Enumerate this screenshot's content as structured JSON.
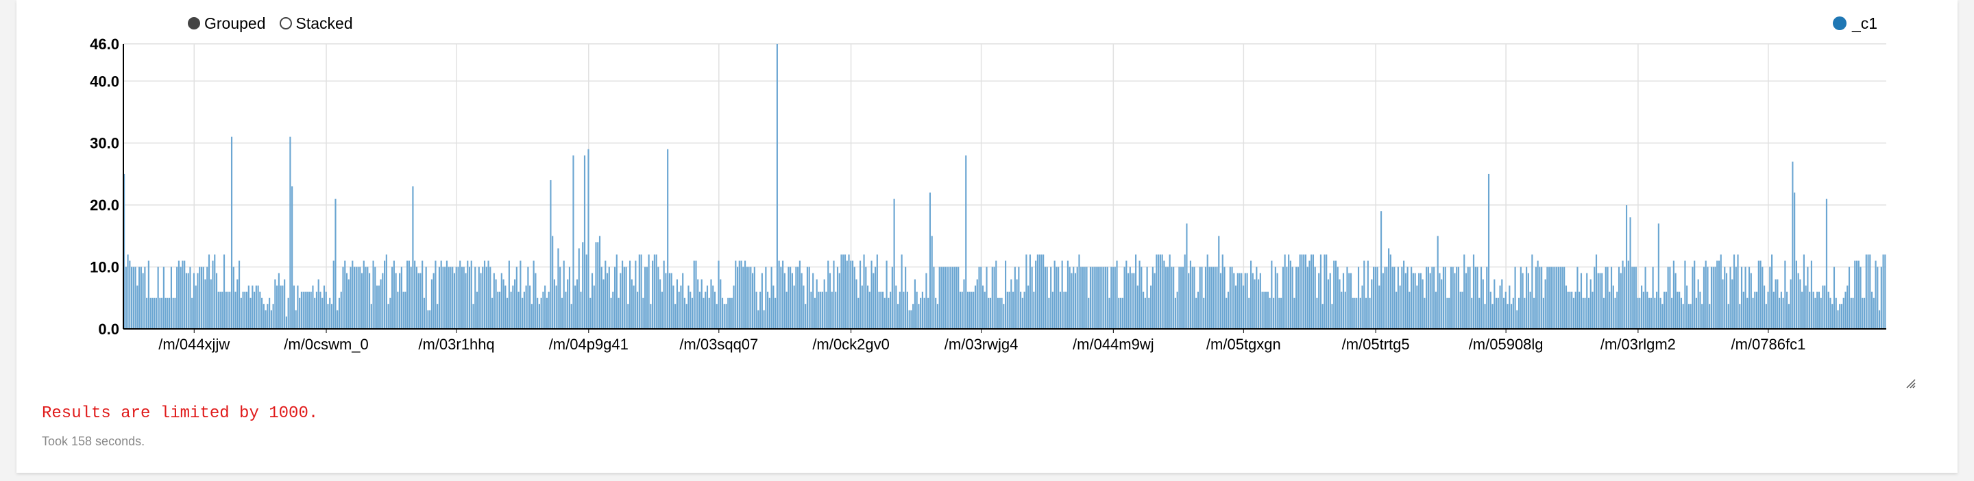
{
  "controls": {
    "grouped": "Grouped",
    "stacked": "Stacked"
  },
  "legend": {
    "label": "_c1",
    "color": "#1f77b4"
  },
  "results_message": "Results are limited by 1000.",
  "took_message": "Took 158 seconds.",
  "chart_data": {
    "type": "bar",
    "title": "",
    "xlabel": "",
    "ylabel": "",
    "ylim": [
      0,
      46
    ],
    "y_ticks": [
      "0.0",
      "10.0",
      "20.0",
      "30.0",
      "40.0",
      "46.0"
    ],
    "grid": true,
    "legend_position": "top-right",
    "bar_color": "#6ba6d2",
    "series": [
      {
        "name": "_c1",
        "color": "#1f77b4"
      }
    ],
    "x_tick_labels": [
      "/m/044xjjw",
      "/m/0cswm_0",
      "/m/03r1hhq",
      "/m/04p9g41",
      "/m/03sqq07",
      "/m/0ck2gv0",
      "/m/03rwjg4",
      "/m/044m9wj",
      "/m/05tgxgn",
      "/m/05trtg5",
      "/m/05908lg",
      "/m/03rlgm2",
      "/m/0786fc1"
    ],
    "values": [
      25,
      10,
      12,
      11,
      10,
      10,
      10,
      7,
      10,
      10,
      9,
      10,
      5,
      11,
      5,
      5,
      5,
      5,
      10,
      5,
      5,
      10,
      5,
      5,
      5,
      10,
      5,
      5,
      10,
      11,
      10,
      11,
      11,
      9,
      9,
      10,
      5,
      9,
      7,
      9,
      10,
      10,
      10,
      8,
      10,
      12,
      8,
      11,
      12,
      9,
      6,
      6,
      6,
      12,
      6,
      6,
      6,
      31,
      10,
      6,
      8,
      11,
      5,
      6,
      6,
      6,
      7,
      5,
      7,
      6,
      7,
      7,
      6,
      5,
      4,
      3,
      4,
      5,
      3,
      4,
      8,
      7,
      9,
      7,
      7,
      8,
      2,
      5,
      31,
      23,
      7,
      3,
      7,
      5,
      6,
      6,
      6,
      6,
      6,
      6,
      7,
      5,
      6,
      8,
      6,
      5,
      7,
      6,
      4,
      5,
      4,
      11,
      21,
      3,
      5,
      6,
      10,
      11,
      9,
      8,
      10,
      11,
      10,
      10,
      10,
      10,
      9,
      11,
      10,
      10,
      9,
      4,
      11,
      10,
      7,
      7,
      8,
      9,
      11,
      12,
      4,
      5,
      10,
      11,
      9,
      6,
      9,
      10,
      6,
      6,
      11,
      11,
      10,
      23,
      11,
      10,
      9,
      9,
      11,
      5,
      10,
      3,
      3,
      8,
      9,
      11,
      4,
      10,
      11,
      10,
      10,
      11,
      10,
      10,
      10,
      9,
      10,
      10,
      11,
      10,
      10,
      9,
      11,
      10,
      11,
      4,
      10,
      6,
      10,
      9,
      10,
      11,
      10,
      11,
      10,
      5,
      9,
      8,
      6,
      6,
      9,
      8,
      7,
      5,
      11,
      6,
      7,
      8,
      10,
      6,
      11,
      5,
      6,
      7,
      10,
      7,
      4,
      11,
      9,
      5,
      4,
      5,
      6,
      7,
      5,
      6,
      24,
      15,
      8,
      7,
      13,
      10,
      5,
      11,
      6,
      8,
      10,
      4,
      28,
      7,
      8,
      13,
      6,
      14,
      28,
      12,
      29,
      5,
      9,
      7,
      14,
      14,
      15,
      10,
      8,
      11,
      9,
      10,
      5,
      6,
      10,
      12,
      5,
      9,
      11,
      10,
      10,
      4,
      11,
      8,
      7,
      11,
      6,
      12,
      12,
      5,
      10,
      10,
      12,
      4,
      11,
      12,
      12,
      10,
      8,
      6,
      11,
      9,
      29,
      9,
      9,
      7,
      4,
      8,
      6,
      7,
      9,
      5,
      4,
      7,
      6,
      5,
      11,
      11,
      8,
      6,
      8,
      5,
      6,
      7,
      5,
      8,
      7,
      6,
      4,
      11,
      8,
      5,
      4,
      4,
      5,
      5,
      5,
      7,
      11,
      10,
      11,
      11,
      10,
      11,
      10,
      10,
      10,
      9,
      10,
      6,
      3,
      6,
      9,
      3,
      10,
      6,
      5,
      10,
      7,
      5,
      46,
      11,
      10,
      11,
      9,
      6,
      10,
      10,
      9,
      7,
      10,
      10,
      11,
      9,
      7,
      4,
      10,
      10,
      6,
      9,
      5,
      8,
      6,
      6,
      6,
      8,
      6,
      11,
      9,
      6,
      11,
      6,
      10,
      9,
      12,
      12,
      12,
      11,
      12,
      11,
      11,
      10,
      8,
      5,
      11,
      7,
      12,
      10,
      7,
      6,
      11,
      9,
      10,
      12,
      6,
      6,
      6,
      5,
      11,
      5,
      6,
      10,
      21,
      7,
      4,
      6,
      12,
      6,
      10,
      6,
      3,
      3,
      4,
      8,
      6,
      4,
      5,
      6,
      5,
      9,
      5,
      22,
      15,
      10,
      5,
      4,
      10,
      10,
      10,
      10,
      10,
      10,
      10,
      10,
      10,
      10,
      10,
      6,
      6,
      8,
      28,
      6,
      6,
      6,
      6,
      7,
      8,
      10,
      10,
      7,
      6,
      10,
      5,
      5,
      10,
      10,
      11,
      5,
      5,
      5,
      4,
      11,
      6,
      6,
      8,
      6,
      10,
      8,
      10,
      6,
      5,
      6,
      12,
      7,
      12,
      10,
      6,
      11,
      12,
      12,
      12,
      12,
      10,
      10,
      5,
      10,
      6,
      11,
      10,
      10,
      6,
      11,
      6,
      6,
      11,
      10,
      9,
      10,
      9,
      10,
      12,
      10,
      10,
      10,
      10,
      5,
      10,
      10,
      10,
      10,
      10,
      10,
      10,
      10,
      10,
      10,
      5,
      10,
      10,
      10,
      11,
      5,
      5,
      5,
      10,
      11,
      9,
      10,
      9,
      9,
      12,
      7,
      11,
      10,
      6,
      5,
      10,
      5,
      7,
      10,
      9,
      12,
      12,
      12,
      12,
      11,
      10,
      10,
      12,
      10,
      10,
      5,
      6,
      10,
      10,
      10,
      12,
      17,
      9,
      11,
      10,
      10,
      5,
      6,
      10,
      10,
      5,
      10,
      12,
      10,
      10,
      10,
      10,
      10,
      15,
      9,
      12,
      10,
      5,
      6,
      10,
      10,
      9,
      7,
      9,
      9,
      9,
      7,
      9,
      9,
      5,
      11,
      9,
      8,
      10,
      8,
      9,
      6,
      6,
      6,
      6,
      5,
      11,
      5,
      10,
      9,
      5,
      5,
      10,
      12,
      10,
      12,
      11,
      10,
      5,
      10,
      10,
      12,
      12,
      12,
      12,
      10,
      11,
      12,
      12,
      10,
      5,
      9,
      12,
      4,
      12,
      12,
      8,
      9,
      4,
      11,
      11,
      10,
      8,
      6,
      9,
      6,
      10,
      9,
      9,
      5,
      5,
      5,
      10,
      5,
      7,
      11,
      5,
      11,
      5,
      8,
      10,
      10,
      10,
      7,
      19,
      9,
      10,
      10,
      13,
      12,
      10,
      10,
      6,
      10,
      7,
      10,
      11,
      9,
      10,
      6,
      10,
      9,
      9,
      7,
      9,
      9,
      8,
      5,
      10,
      10,
      9,
      10,
      10,
      6,
      15,
      9,
      8,
      10,
      10,
      5,
      5,
      10,
      10,
      9,
      10,
      10,
      6,
      6,
      12,
      9,
      10,
      10,
      5,
      12,
      10,
      10,
      5,
      10,
      8,
      4,
      10,
      25,
      6,
      4,
      8,
      5,
      5,
      7,
      8,
      5,
      6,
      4,
      7,
      4,
      5,
      10,
      3,
      5,
      10,
      9,
      5,
      10,
      9,
      6,
      12,
      5,
      10,
      11,
      10,
      10,
      5,
      8,
      10,
      10,
      10,
      10,
      10,
      10,
      10,
      10,
      10,
      10,
      7,
      6,
      6,
      6,
      5,
      6,
      10,
      6,
      9,
      5,
      5,
      9,
      5,
      8,
      6,
      10,
      12,
      9,
      9,
      9,
      5,
      10,
      10,
      6,
      10,
      7,
      5,
      6,
      10,
      9,
      11,
      10,
      20,
      11,
      18,
      10,
      10,
      10,
      5,
      5,
      7,
      6,
      10,
      6,
      5,
      5,
      10,
      5,
      6,
      17,
      5,
      4,
      6,
      6,
      10,
      10,
      5,
      11,
      9,
      6,
      6,
      5,
      4,
      11,
      7,
      4,
      4,
      10,
      11,
      5,
      8,
      6,
      4,
      10,
      11,
      10,
      4,
      10,
      10,
      10,
      11,
      11,
      12,
      8,
      10,
      9,
      4,
      10,
      8,
      12,
      10,
      12,
      4,
      10,
      6,
      10,
      5,
      10,
      9,
      5,
      6,
      6,
      11,
      11,
      10,
      7,
      4,
      6,
      10,
      12,
      6,
      8,
      8,
      5,
      6,
      5,
      11,
      6,
      4,
      8,
      27,
      22,
      11,
      9,
      8,
      6,
      12,
      7,
      10,
      6,
      11,
      6,
      5,
      6,
      6,
      5,
      7,
      7,
      21,
      6,
      5,
      4,
      10,
      5,
      3,
      4,
      4,
      5,
      6,
      7,
      10,
      5,
      5,
      11,
      11,
      11,
      10,
      5,
      5,
      12,
      12,
      12,
      6,
      5,
      11,
      10,
      3,
      10,
      12,
      12
    ]
  }
}
